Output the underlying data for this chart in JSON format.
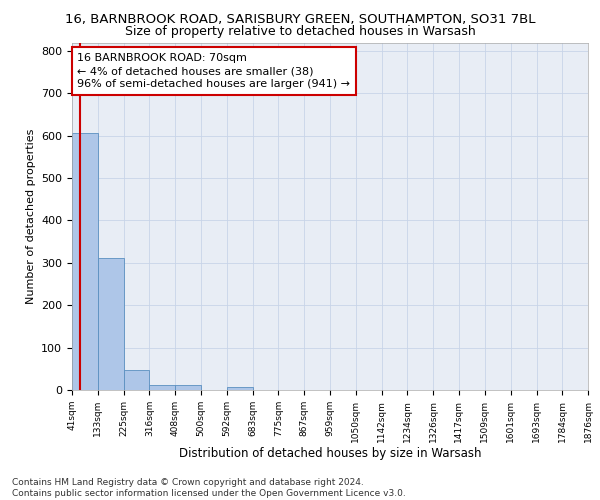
{
  "title_line1": "16, BARNBROOK ROAD, SARISBURY GREEN, SOUTHAMPTON, SO31 7BL",
  "title_line2": "Size of property relative to detached houses in Warsash",
  "xlabel": "Distribution of detached houses by size in Warsash",
  "ylabel": "Number of detached properties",
  "footnote": "Contains HM Land Registry data © Crown copyright and database right 2024.\nContains public sector information licensed under the Open Government Licence v3.0.",
  "bar_edges": [
    41,
    133,
    225,
    316,
    408,
    500,
    592,
    683,
    775,
    867,
    959,
    1050,
    1142,
    1234,
    1326,
    1417,
    1509,
    1601,
    1693,
    1784,
    1876
  ],
  "bar_heights": [
    607,
    311,
    48,
    11,
    12,
    0,
    8,
    0,
    0,
    0,
    0,
    0,
    0,
    0,
    0,
    0,
    0,
    0,
    0,
    0
  ],
  "bar_color": "#aec6e8",
  "bar_edge_color": "#5a8fc0",
  "grid_color": "#c8d4e8",
  "background_color": "#e8edf5",
  "annotation_box_color": "#cc0000",
  "annotation_text": "16 BARNBROOK ROAD: 70sqm\n← 4% of detached houses are smaller (38)\n96% of semi-detached houses are larger (941) →",
  "property_sqm": 70,
  "property_line_color": "#cc0000",
  "ylim": [
    0,
    820
  ],
  "yticks": [
    0,
    100,
    200,
    300,
    400,
    500,
    600,
    700,
    800
  ],
  "tick_labels": [
    "41sqm",
    "133sqm",
    "225sqm",
    "316sqm",
    "408sqm",
    "500sqm",
    "592sqm",
    "683sqm",
    "775sqm",
    "867sqm",
    "959sqm",
    "1050sqm",
    "1142sqm",
    "1234sqm",
    "1326sqm",
    "1417sqm",
    "1509sqm",
    "1601sqm",
    "1693sqm",
    "1784sqm",
    "1876sqm"
  ],
  "title1_fontsize": 9.5,
  "title2_fontsize": 9,
  "xlabel_fontsize": 8.5,
  "ylabel_fontsize": 8,
  "footnote_fontsize": 6.5,
  "annotation_fontsize": 8,
  "xtick_fontsize": 6.5,
  "ytick_fontsize": 8
}
